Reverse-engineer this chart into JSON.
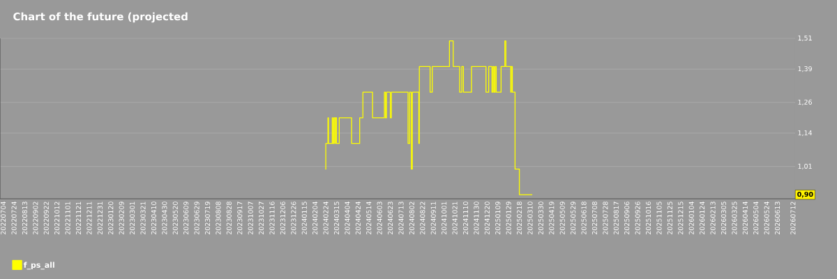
{
  "chart_data": {
    "type": "step",
    "title": "Chart of the future (projected",
    "x": [
      "2024-02-23",
      "2024-02-24",
      "2024-02-28",
      "2024-02-29",
      "2024-03-07",
      "2024-03-08",
      "2024-03-10",
      "2024-03-12",
      "2024-03-13",
      "2024-03-15",
      "2024-03-20",
      "2024-04-12",
      "2024-04-27",
      "2024-05-03",
      "2024-05-21",
      "2024-06-12",
      "2024-06-14",
      "2024-06-16",
      "2024-06-23",
      "2024-06-25",
      "2024-07-26",
      "2024-07-29",
      "2024-08-01",
      "2024-08-03",
      "2024-08-15",
      "2024-08-16",
      "2024-09-05",
      "2024-09-09",
      "2024-10-11",
      "2024-10-18",
      "2024-10-30",
      "2024-11-03",
      "2024-11-06",
      "2024-11-21",
      "2024-12-18",
      "2024-12-23",
      "2024-12-29",
      "2024-12-31",
      "2025-01-02",
      "2025-01-04",
      "2025-01-06",
      "2025-01-15",
      "2025-01-22",
      "2025-01-24",
      "2025-02-02",
      "2025-02-03",
      "2025-02-05",
      "2025-02-10",
      "2025-02-18",
      "2025-03-14"
    ],
    "series": [
      {
        "name": "f_ps_all",
        "color": "#ffff00",
        "values": [
          1.0,
          1.1,
          1.2,
          1.1,
          1.2,
          1.1,
          1.2,
          1.1,
          1.2,
          1.1,
          1.2,
          1.1,
          1.2,
          1.3,
          1.2,
          1.3,
          1.2,
          1.3,
          1.2,
          1.3,
          1.1,
          1.3,
          1.0,
          1.3,
          1.1,
          1.4,
          1.3,
          1.4,
          1.5,
          1.4,
          1.3,
          1.4,
          1.3,
          1.4,
          1.3,
          1.4,
          1.3,
          1.4,
          1.3,
          1.4,
          1.3,
          1.4,
          1.5,
          1.4,
          1.3,
          1.4,
          1.3,
          1.0,
          0.9,
          0.9
        ]
      }
    ],
    "xlim": [
      "2022-06-28",
      "2026-07-16"
    ],
    "xticks": [
      {
        "value": "2022-07-04",
        "label": "20220704"
      },
      {
        "value": "2022-07-24",
        "label": "20220724"
      },
      {
        "value": "2022-08-13",
        "label": "20220813"
      },
      {
        "value": "2022-09-02",
        "label": "20220902"
      },
      {
        "value": "2022-09-22",
        "label": "20220922"
      },
      {
        "value": "2022-10-12",
        "label": "20221012"
      },
      {
        "value": "2022-11-01",
        "label": "20221101"
      },
      {
        "value": "2022-11-21",
        "label": "20221121"
      },
      {
        "value": "2022-12-11",
        "label": "20221211"
      },
      {
        "value": "2022-12-31",
        "label": "20221231"
      },
      {
        "value": "2023-01-20",
        "label": "20230120"
      },
      {
        "value": "2023-02-09",
        "label": "20230209"
      },
      {
        "value": "2023-03-01",
        "label": "20230301"
      },
      {
        "value": "2023-03-21",
        "label": "20230321"
      },
      {
        "value": "2023-04-10",
        "label": "20230410"
      },
      {
        "value": "2023-04-30",
        "label": "20230430"
      },
      {
        "value": "2023-05-20",
        "label": "20230520"
      },
      {
        "value": "2023-06-09",
        "label": "20230609"
      },
      {
        "value": "2023-06-29",
        "label": "20230629"
      },
      {
        "value": "2023-07-19",
        "label": "20230719"
      },
      {
        "value": "2023-08-08",
        "label": "20230808"
      },
      {
        "value": "2023-08-28",
        "label": "20230828"
      },
      {
        "value": "2023-09-17",
        "label": "20230917"
      },
      {
        "value": "2023-10-07",
        "label": "20231007"
      },
      {
        "value": "2023-10-27",
        "label": "20231027"
      },
      {
        "value": "2023-11-16",
        "label": "20231116"
      },
      {
        "value": "2023-12-06",
        "label": "20231206"
      },
      {
        "value": "2023-12-26",
        "label": "20231226"
      },
      {
        "value": "2024-01-15",
        "label": "20240115"
      },
      {
        "value": "2024-02-04",
        "label": "20240204"
      },
      {
        "value": "2024-02-24",
        "label": "20240224"
      },
      {
        "value": "2024-03-15",
        "label": "20240315"
      },
      {
        "value": "2024-04-04",
        "label": "20240404"
      },
      {
        "value": "2024-04-24",
        "label": "20240424"
      },
      {
        "value": "2024-05-14",
        "label": "20240514"
      },
      {
        "value": "2024-06-03",
        "label": "20240603"
      },
      {
        "value": "2024-06-23",
        "label": "20240623"
      },
      {
        "value": "2024-07-13",
        "label": "20240713"
      },
      {
        "value": "2024-08-02",
        "label": "20240802"
      },
      {
        "value": "2024-08-22",
        "label": "20240822"
      },
      {
        "value": "2024-09-11",
        "label": "20240911"
      },
      {
        "value": "2024-10-01",
        "label": "20241001"
      },
      {
        "value": "2024-10-21",
        "label": "20241021"
      },
      {
        "value": "2024-11-10",
        "label": "20241110"
      },
      {
        "value": "2024-11-30",
        "label": "20241130"
      },
      {
        "value": "2024-12-20",
        "label": "20241220"
      },
      {
        "value": "2025-01-09",
        "label": "20250109"
      },
      {
        "value": "2025-01-29",
        "label": "20250129"
      },
      {
        "value": "2025-02-18",
        "label": "20250218"
      },
      {
        "value": "2025-03-10",
        "label": "20250310"
      },
      {
        "value": "2025-03-30",
        "label": "20250330"
      },
      {
        "value": "2025-04-19",
        "label": "20250419"
      },
      {
        "value": "2025-05-09",
        "label": "20250509"
      },
      {
        "value": "2025-05-29",
        "label": "20250529"
      },
      {
        "value": "2025-06-18",
        "label": "20250618"
      },
      {
        "value": "2025-07-08",
        "label": "20250708"
      },
      {
        "value": "2025-07-28",
        "label": "20250728"
      },
      {
        "value": "2025-08-17",
        "label": "20250817"
      },
      {
        "value": "2025-09-06",
        "label": "20250906"
      },
      {
        "value": "2025-09-26",
        "label": "20250926"
      },
      {
        "value": "2025-10-16",
        "label": "20251016"
      },
      {
        "value": "2025-11-05",
        "label": "20251105"
      },
      {
        "value": "2025-11-25",
        "label": "20251125"
      },
      {
        "value": "2025-12-15",
        "label": "20251215"
      },
      {
        "value": "2026-01-04",
        "label": "20260104"
      },
      {
        "value": "2026-01-24",
        "label": "20260124"
      },
      {
        "value": "2026-02-13",
        "label": "20260213"
      },
      {
        "value": "2026-03-05",
        "label": "20260305"
      },
      {
        "value": "2026-03-25",
        "label": "20260325"
      },
      {
        "value": "2026-04-14",
        "label": "20260414"
      },
      {
        "value": "2026-05-04",
        "label": "20260504"
      },
      {
        "value": "2026-05-24",
        "label": "20260524"
      },
      {
        "value": "2026-06-13",
        "label": "20260613"
      },
      {
        "value": "2026-07-12",
        "label": "20260712"
      }
    ],
    "ylim": [
      0.884,
      1.51
    ],
    "yticks": [
      {
        "value": 1.01,
        "label": "1,01"
      },
      {
        "value": 1.14,
        "label": "1,14"
      },
      {
        "value": 1.26,
        "label": "1,26"
      },
      {
        "value": 1.39,
        "label": "1,39"
      },
      {
        "value": 1.51,
        "label": "1,51"
      }
    ],
    "grid": "y",
    "legend": "bottom",
    "annotations": [
      {
        "text": "0,90",
        "y": 0.9
      }
    ]
  }
}
